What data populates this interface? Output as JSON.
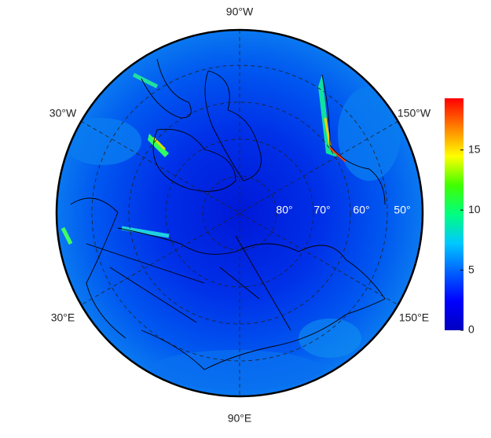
{
  "map": {
    "longitude_labels": [
      "90°W",
      "30°W",
      "150°W",
      "30°E",
      "150°E",
      "90°E"
    ],
    "latitude_labels": [
      "80°",
      "70°",
      "60°",
      "50°"
    ]
  },
  "colorbar": {
    "lim": [
      0,
      19.3
    ],
    "ticks": [
      0,
      5,
      10,
      15
    ],
    "colors": [
      "#0000c0",
      "#0000ff",
      "#0060ff",
      "#00c8ff",
      "#00ff80",
      "#40ff00",
      "#ffff00",
      "#ff8000",
      "#ff0000"
    ]
  }
}
